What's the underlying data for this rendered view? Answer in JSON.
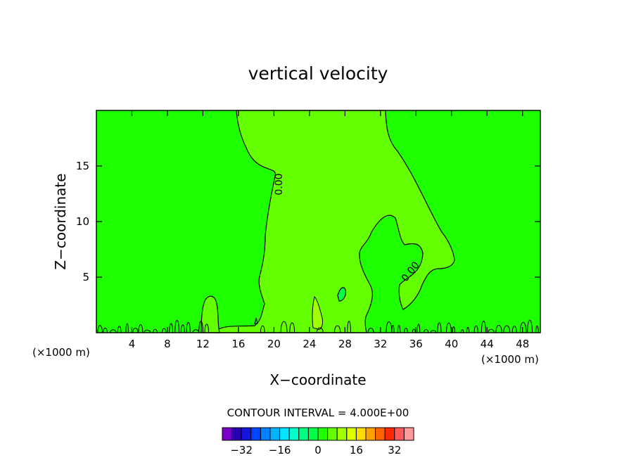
{
  "chart_data": {
    "type": "heatmap",
    "title": "vertical velocity",
    "xlabel": "X−coordinate",
    "ylabel": "Z−coordinate",
    "xunit_left": "(×1000 m)",
    "xunit_right": "(×1000 m)",
    "xlim": [
      0,
      50
    ],
    "ylim": [
      0,
      20
    ],
    "xticks": [
      4,
      8,
      12,
      16,
      20,
      24,
      28,
      32,
      36,
      40,
      44,
      48
    ],
    "yticks": [
      5,
      10,
      15
    ],
    "contour_labels": [
      "0.00",
      "0.00"
    ],
    "contour_interval_label": "CONTOUR INTERVAL = 4.000E+00",
    "colorbar": {
      "levels": [
        -36,
        -32,
        -28,
        -24,
        -20,
        -16,
        -12,
        -8,
        -4,
        0,
        4,
        8,
        12,
        16,
        20,
        24,
        28,
        32,
        36
      ],
      "tick_labels": [
        -32,
        -16,
        0,
        16,
        32
      ],
      "colors": [
        "#7a00c8",
        "#2800b4",
        "#1414dc",
        "#0046ff",
        "#0082ff",
        "#00b4ff",
        "#00e6ff",
        "#00ffc8",
        "#00ff82",
        "#00ff46",
        "#1eff00",
        "#64ff00",
        "#a0ff00",
        "#dcff00",
        "#ffdc00",
        "#ffa000",
        "#ff6400",
        "#ff2800",
        "#ff5a5a",
        "#ff9a9a"
      ]
    },
    "background_color": "#1eff00",
    "updraft_color": "#64ff00",
    "downdraft_color": "#00ff46"
  }
}
